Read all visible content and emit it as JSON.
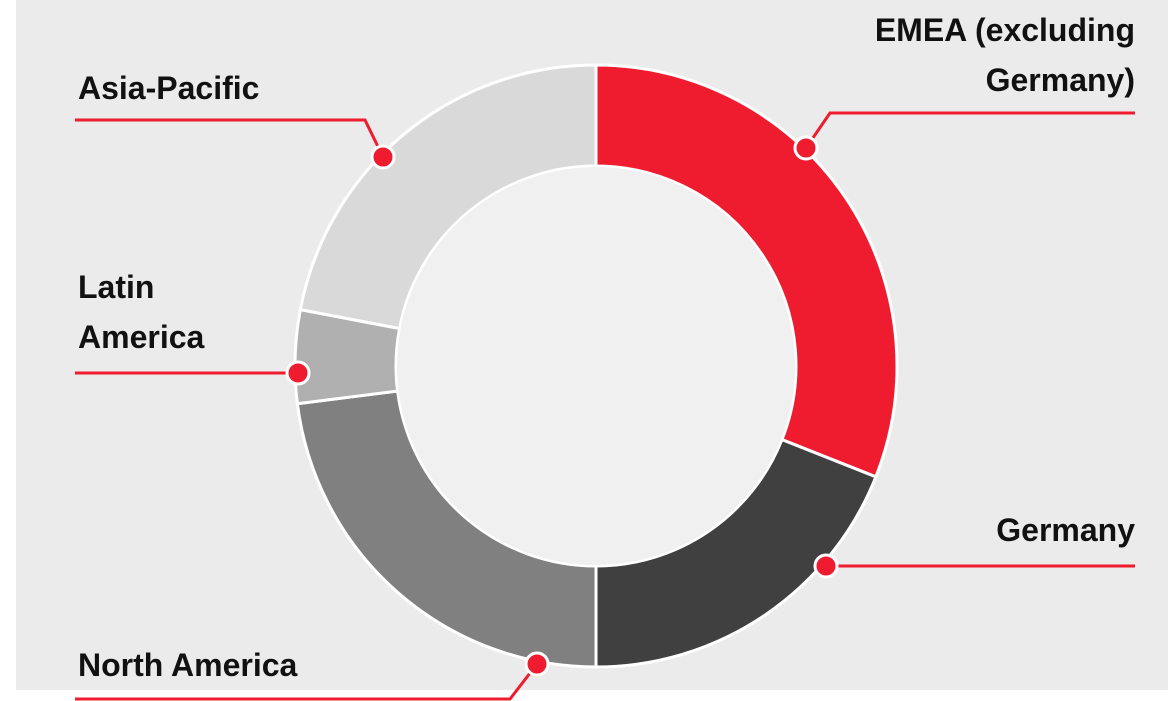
{
  "chart_data": {
    "type": "donut",
    "categories": [
      "EMEA (excluding Germany)",
      "Germany",
      "North America",
      "Latin America",
      "Asia-Pacific"
    ],
    "values": [
      31,
      19,
      23,
      5,
      22
    ],
    "colors": [
      "#ee1c2e",
      "#404040",
      "#808080",
      "#b0b0b0",
      "#d9d9d9"
    ]
  }
}
